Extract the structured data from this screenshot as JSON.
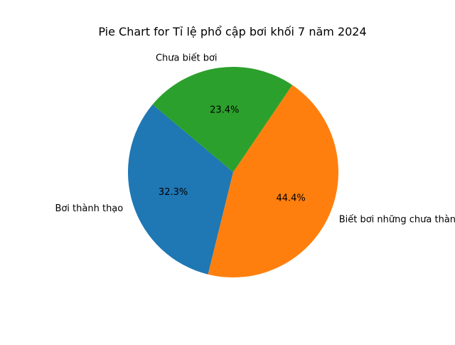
{
  "chart_data": {
    "type": "pie",
    "title": "Pie Chart for Tỉ lệ phổ cập bơi khối 7 năm 2024",
    "slices": [
      {
        "label": "Bơi thành thạo",
        "value": 32.3,
        "pct_text": "32.3%",
        "color": "#1f77b4"
      },
      {
        "label": "Biết bơi những chưa thành thạo",
        "value": 44.4,
        "pct_text": "44.4%",
        "color": "#ff7f0e"
      },
      {
        "label": "Chưa biết bơi",
        "value": 23.4,
        "pct_text": "23.4%",
        "color": "#2ca02c"
      }
    ],
    "start_angle_deg": 140,
    "direction": "counterclockwise",
    "legend": "none"
  }
}
